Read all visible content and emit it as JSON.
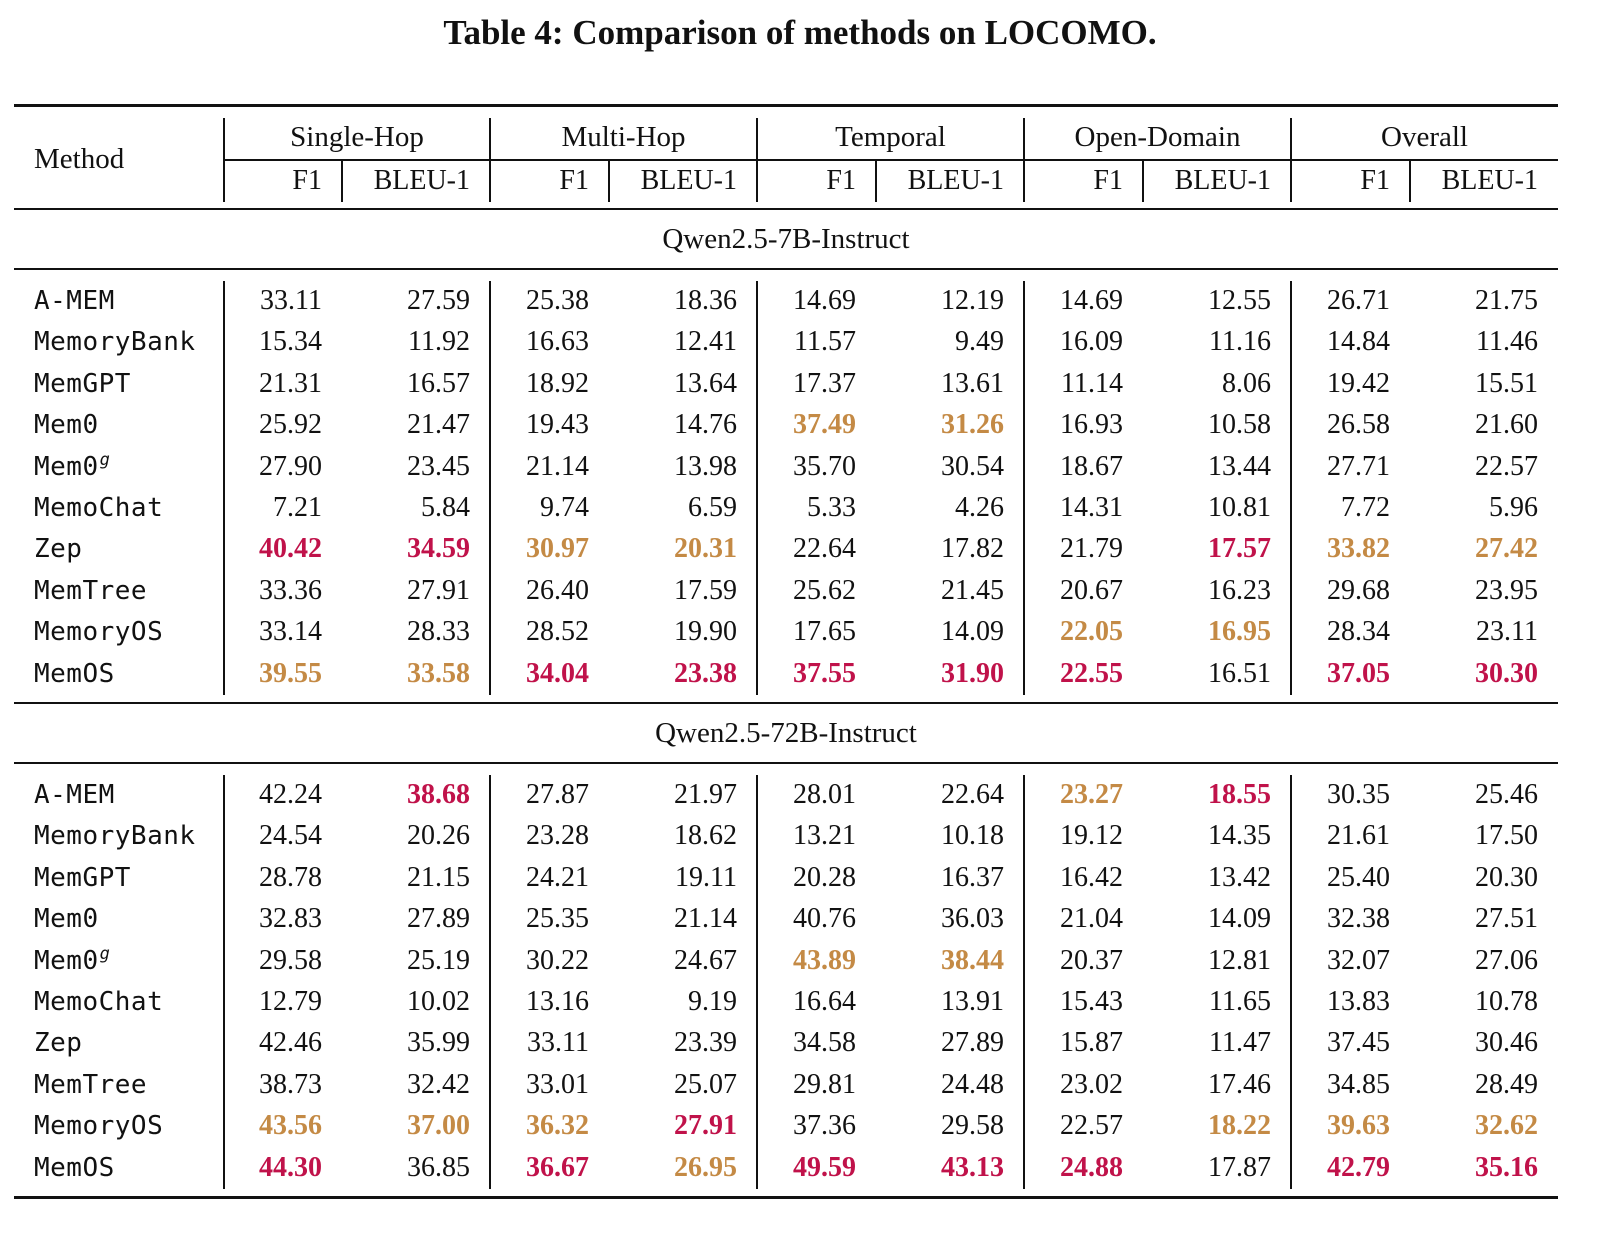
{
  "caption": "Table 4: Comparison of methods on LOCOMO.",
  "colors": {
    "best": "#c0124a",
    "second": "#c48a45"
  },
  "header": {
    "method": "Method",
    "groups": [
      "Single-Hop",
      "Multi-Hop",
      "Temporal",
      "Open-Domain",
      "Overall"
    ],
    "metrics": [
      "F1",
      "BLEU-1"
    ]
  },
  "sections": [
    {
      "title": "Qwen2.5-7B-Instruct",
      "rows": [
        {
          "method": "A-MEM",
          "sup": "",
          "values": [
            "33.11",
            "27.59",
            "25.38",
            "18.36",
            "14.69",
            "12.19",
            "14.69",
            "12.55",
            "26.71",
            "21.75"
          ],
          "styles": [
            "",
            "",
            "",
            "",
            "",
            "",
            "",
            "",
            "",
            ""
          ]
        },
        {
          "method": "MemoryBank",
          "sup": "",
          "values": [
            "15.34",
            "11.92",
            "16.63",
            "12.41",
            "11.57",
            "9.49",
            "16.09",
            "11.16",
            "14.84",
            "11.46"
          ],
          "styles": [
            "",
            "",
            "",
            "",
            "",
            "",
            "",
            "",
            "",
            ""
          ]
        },
        {
          "method": "MemGPT",
          "sup": "",
          "values": [
            "21.31",
            "16.57",
            "18.92",
            "13.64",
            "17.37",
            "13.61",
            "11.14",
            "8.06",
            "19.42",
            "15.51"
          ],
          "styles": [
            "",
            "",
            "",
            "",
            "",
            "",
            "",
            "",
            "",
            ""
          ]
        },
        {
          "method": "Mem0",
          "sup": "",
          "values": [
            "25.92",
            "21.47",
            "19.43",
            "14.76",
            "37.49",
            "31.26",
            "16.93",
            "10.58",
            "26.58",
            "21.60"
          ],
          "styles": [
            "",
            "",
            "",
            "",
            "second",
            "second",
            "",
            "",
            "",
            ""
          ]
        },
        {
          "method": "Mem0",
          "sup": "g",
          "values": [
            "27.90",
            "23.45",
            "21.14",
            "13.98",
            "35.70",
            "30.54",
            "18.67",
            "13.44",
            "27.71",
            "22.57"
          ],
          "styles": [
            "",
            "",
            "",
            "",
            "",
            "",
            "",
            "",
            "",
            ""
          ]
        },
        {
          "method": "MemoChat",
          "sup": "",
          "values": [
            "7.21",
            "5.84",
            "9.74",
            "6.59",
            "5.33",
            "4.26",
            "14.31",
            "10.81",
            "7.72",
            "5.96"
          ],
          "styles": [
            "",
            "",
            "",
            "",
            "",
            "",
            "",
            "",
            "",
            ""
          ]
        },
        {
          "method": "Zep",
          "sup": "",
          "values": [
            "40.42",
            "34.59",
            "30.97",
            "20.31",
            "22.64",
            "17.82",
            "21.79",
            "17.57",
            "33.82",
            "27.42"
          ],
          "styles": [
            "best",
            "best",
            "second",
            "second",
            "",
            "",
            "",
            "best",
            "second",
            "second"
          ]
        },
        {
          "method": "MemTree",
          "sup": "",
          "values": [
            "33.36",
            "27.91",
            "26.40",
            "17.59",
            "25.62",
            "21.45",
            "20.67",
            "16.23",
            "29.68",
            "23.95"
          ],
          "styles": [
            "",
            "",
            "",
            "",
            "",
            "",
            "",
            "",
            "",
            ""
          ]
        },
        {
          "method": "MemoryOS",
          "sup": "",
          "values": [
            "33.14",
            "28.33",
            "28.52",
            "19.90",
            "17.65",
            "14.09",
            "22.05",
            "16.95",
            "28.34",
            "23.11"
          ],
          "styles": [
            "",
            "",
            "",
            "",
            "",
            "",
            "second",
            "second",
            "",
            ""
          ]
        },
        {
          "method": "MemOS",
          "sup": "",
          "values": [
            "39.55",
            "33.58",
            "34.04",
            "23.38",
            "37.55",
            "31.90",
            "22.55",
            "16.51",
            "37.05",
            "30.30"
          ],
          "styles": [
            "second",
            "second",
            "best",
            "best",
            "best",
            "best",
            "best",
            "",
            "best",
            "best"
          ]
        }
      ]
    },
    {
      "title": "Qwen2.5-72B-Instruct",
      "rows": [
        {
          "method": "A-MEM",
          "sup": "",
          "values": [
            "42.24",
            "38.68",
            "27.87",
            "21.97",
            "28.01",
            "22.64",
            "23.27",
            "18.55",
            "30.35",
            "25.46"
          ],
          "styles": [
            "",
            "best",
            "",
            "",
            "",
            "",
            "second",
            "best",
            "",
            ""
          ]
        },
        {
          "method": "MemoryBank",
          "sup": "",
          "values": [
            "24.54",
            "20.26",
            "23.28",
            "18.62",
            "13.21",
            "10.18",
            "19.12",
            "14.35",
            "21.61",
            "17.50"
          ],
          "styles": [
            "",
            "",
            "",
            "",
            "",
            "",
            "",
            "",
            "",
            ""
          ]
        },
        {
          "method": "MemGPT",
          "sup": "",
          "values": [
            "28.78",
            "21.15",
            "24.21",
            "19.11",
            "20.28",
            "16.37",
            "16.42",
            "13.42",
            "25.40",
            "20.30"
          ],
          "styles": [
            "",
            "",
            "",
            "",
            "",
            "",
            "",
            "",
            "",
            ""
          ]
        },
        {
          "method": "Mem0",
          "sup": "",
          "values": [
            "32.83",
            "27.89",
            "25.35",
            "21.14",
            "40.76",
            "36.03",
            "21.04",
            "14.09",
            "32.38",
            "27.51"
          ],
          "styles": [
            "",
            "",
            "",
            "",
            "",
            "",
            "",
            "",
            "",
            ""
          ]
        },
        {
          "method": "Mem0",
          "sup": "g",
          "values": [
            "29.58",
            "25.19",
            "30.22",
            "24.67",
            "43.89",
            "38.44",
            "20.37",
            "12.81",
            "32.07",
            "27.06"
          ],
          "styles": [
            "",
            "",
            "",
            "",
            "second",
            "second",
            "",
            "",
            "",
            ""
          ]
        },
        {
          "method": "MemoChat",
          "sup": "",
          "values": [
            "12.79",
            "10.02",
            "13.16",
            "9.19",
            "16.64",
            "13.91",
            "15.43",
            "11.65",
            "13.83",
            "10.78"
          ],
          "styles": [
            "",
            "",
            "",
            "",
            "",
            "",
            "",
            "",
            "",
            ""
          ]
        },
        {
          "method": "Zep",
          "sup": "",
          "values": [
            "42.46",
            "35.99",
            "33.11",
            "23.39",
            "34.58",
            "27.89",
            "15.87",
            "11.47",
            "37.45",
            "30.46"
          ],
          "styles": [
            "",
            "",
            "",
            "",
            "",
            "",
            "",
            "",
            "",
            ""
          ]
        },
        {
          "method": "MemTree",
          "sup": "",
          "values": [
            "38.73",
            "32.42",
            "33.01",
            "25.07",
            "29.81",
            "24.48",
            "23.02",
            "17.46",
            "34.85",
            "28.49"
          ],
          "styles": [
            "",
            "",
            "",
            "",
            "",
            "",
            "",
            "",
            "",
            ""
          ]
        },
        {
          "method": "MemoryOS",
          "sup": "",
          "values": [
            "43.56",
            "37.00",
            "36.32",
            "27.91",
            "37.36",
            "29.58",
            "22.57",
            "18.22",
            "39.63",
            "32.62"
          ],
          "styles": [
            "second",
            "second",
            "second",
            "best",
            "",
            "",
            "",
            "second",
            "second",
            "second"
          ]
        },
        {
          "method": "MemOS",
          "sup": "",
          "values": [
            "44.30",
            "36.85",
            "36.67",
            "26.95",
            "49.59",
            "43.13",
            "24.88",
            "17.87",
            "42.79",
            "35.16"
          ],
          "styles": [
            "best",
            "",
            "best",
            "second",
            "best",
            "best",
            "best",
            "",
            "best",
            "best"
          ]
        }
      ]
    }
  ]
}
